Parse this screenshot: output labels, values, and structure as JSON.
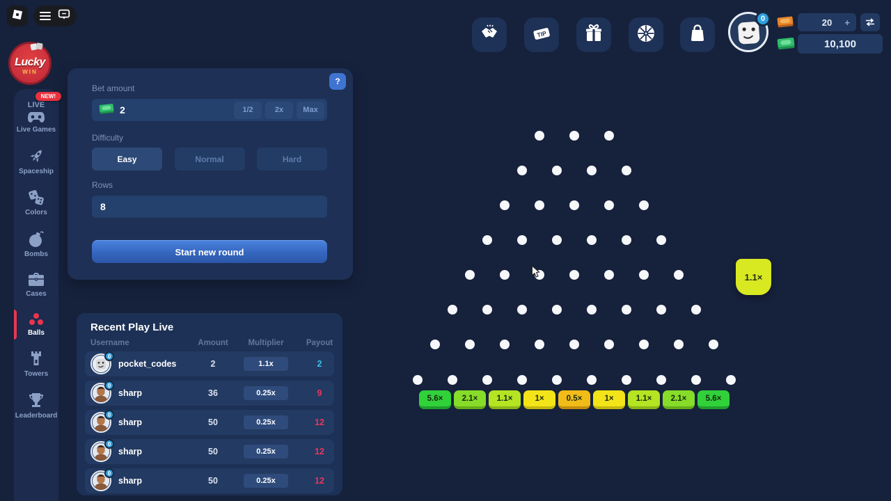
{
  "window_controls": {
    "icons": [
      "roblox-logo",
      "menu",
      "chat"
    ]
  },
  "brand": {
    "line1": "Lucky",
    "line2": "WIN"
  },
  "sidebar": {
    "items": [
      {
        "id": "live-games",
        "label": "Live Games",
        "overline": "LIVE",
        "badge": "NEW!",
        "icon": "gamepad",
        "active": false
      },
      {
        "id": "spaceship",
        "label": "Spaceship",
        "icon": "rocket",
        "active": false
      },
      {
        "id": "colors",
        "label": "Colors",
        "icon": "dice",
        "active": false
      },
      {
        "id": "bombs",
        "label": "Bombs",
        "icon": "bomb",
        "active": false
      },
      {
        "id": "cases",
        "label": "Cases",
        "icon": "briefcase",
        "active": false
      },
      {
        "id": "balls",
        "label": "Balls",
        "icon": "balls",
        "active": true
      },
      {
        "id": "towers",
        "label": "Towers",
        "icon": "tower",
        "active": false
      },
      {
        "id": "leaderboard",
        "label": "Leaderboard",
        "icon": "trophy",
        "active": false
      }
    ]
  },
  "quick_actions": [
    {
      "id": "referral",
      "icon": "handshake"
    },
    {
      "id": "tip",
      "icon": "tip",
      "text": "TIP"
    },
    {
      "id": "rewards",
      "icon": "gift"
    },
    {
      "id": "wheel",
      "icon": "wheel"
    },
    {
      "id": "shop",
      "icon": "bag"
    }
  ],
  "account": {
    "avatar_badge": "0",
    "robux_balance": "20",
    "add_label": "+",
    "cash_balance": "10,100",
    "colors": {
      "robux_icon": "#E8862B",
      "cash_icon": "#2EBD6B",
      "badge_blue": "#2F9FE0"
    }
  },
  "bet_panel": {
    "help_label": "?",
    "bet_amount_label": "Bet amount",
    "bet_value": "2",
    "quick_buttons": [
      "1/2",
      "2x",
      "Max"
    ],
    "difficulty_label": "Difficulty",
    "difficulties": [
      {
        "label": "Easy",
        "active": true
      },
      {
        "label": "Normal",
        "active": false
      },
      {
        "label": "Hard",
        "active": false
      }
    ],
    "rows_label": "Rows",
    "rows_value": "8",
    "start_label": "Start new round"
  },
  "recent": {
    "title": "Recent Play Live",
    "columns": [
      "Username",
      "Amount",
      "Multiplier",
      "Payout"
    ],
    "rows": [
      {
        "username": "pocket_codes",
        "avatar": "roblox",
        "badge": "0",
        "amount": "2",
        "multiplier": "1.1x",
        "payout": "2",
        "outcome": "win"
      },
      {
        "username": "sharp",
        "avatar": "person",
        "badge": "0",
        "amount": "36",
        "multiplier": "0.25x",
        "payout": "9",
        "outcome": "loss"
      },
      {
        "username": "sharp",
        "avatar": "person",
        "badge": "0",
        "amount": "50",
        "multiplier": "0.25x",
        "payout": "12",
        "outcome": "loss"
      },
      {
        "username": "sharp",
        "avatar": "person",
        "badge": "0",
        "amount": "50",
        "multiplier": "0.25x",
        "payout": "12",
        "outcome": "loss"
      },
      {
        "username": "sharp",
        "avatar": "person",
        "badge": "0",
        "amount": "50",
        "multiplier": "0.25x",
        "payout": "12",
        "outcome": "loss"
      }
    ],
    "payout_colors": {
      "win": "#3BC1E8",
      "loss": "#E8365C"
    }
  },
  "board": {
    "peg_rows": 8,
    "top_row_pegs": 3,
    "buckets": [
      {
        "label": "5.6×",
        "bg": "#31D13A",
        "edge": "#1F9E2C"
      },
      {
        "label": "2.1×",
        "bg": "#86DC28",
        "edge": "#65AD1B"
      },
      {
        "label": "1.1×",
        "bg": "#B4E422",
        "edge": "#8CB517"
      },
      {
        "label": "1×",
        "bg": "#F2E418",
        "edge": "#C4B80E"
      },
      {
        "label": "0.5×",
        "bg": "#F2BC18",
        "edge": "#C28E0D"
      },
      {
        "label": "1×",
        "bg": "#F2E418",
        "edge": "#C4B80E"
      },
      {
        "label": "1.1×",
        "bg": "#B4E422",
        "edge": "#8CB517"
      },
      {
        "label": "2.1×",
        "bg": "#86DC28",
        "edge": "#65AD1B"
      },
      {
        "label": "5.6×",
        "bg": "#31D13A",
        "edge": "#1F9E2C"
      }
    ],
    "result_badge": "1.1×"
  }
}
